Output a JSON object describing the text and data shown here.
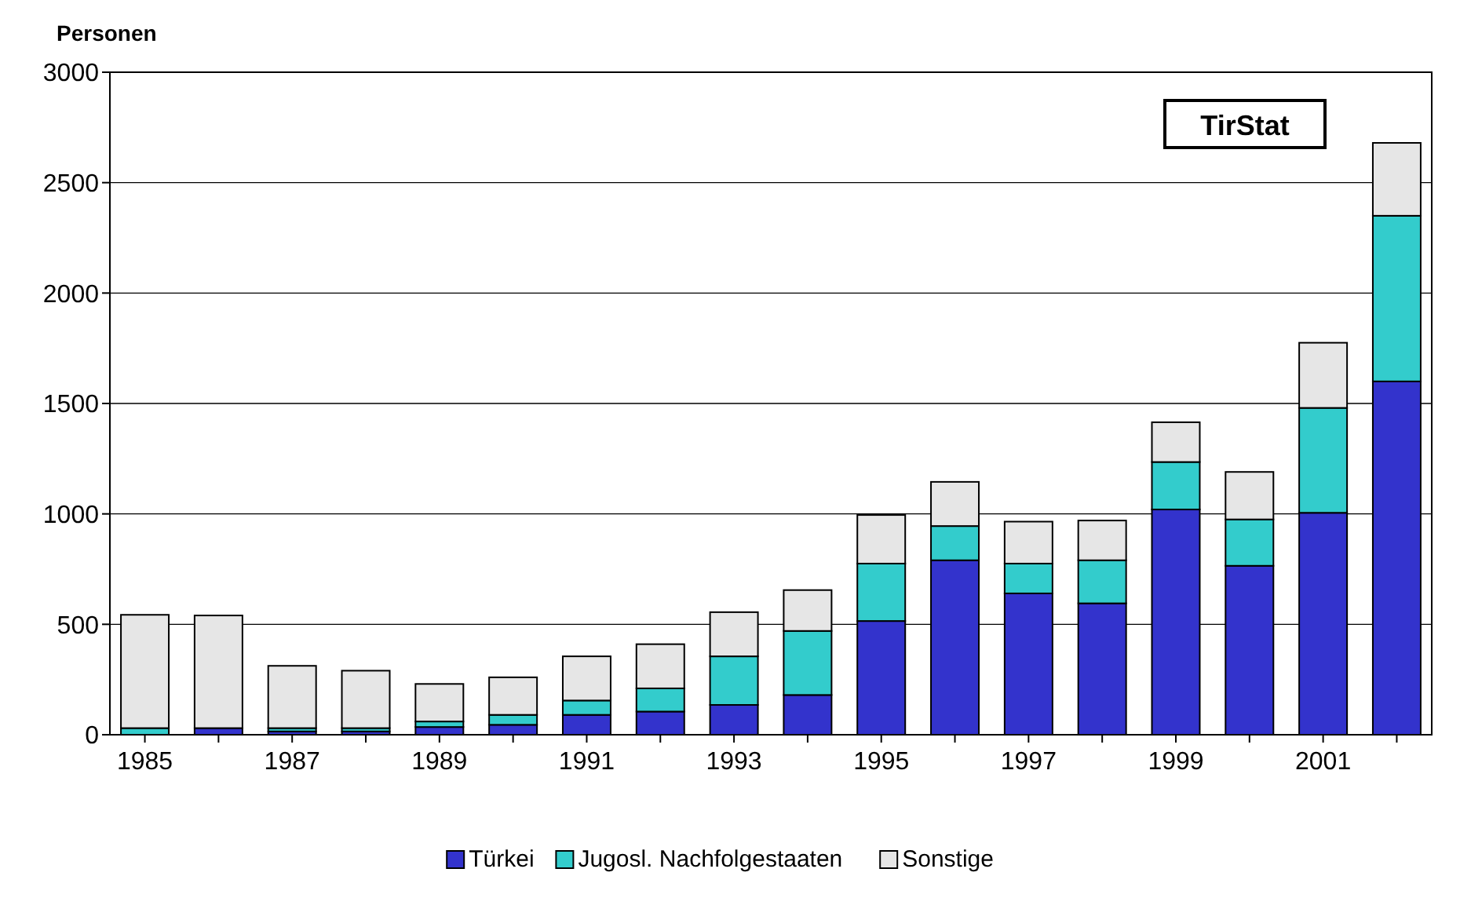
{
  "chart_data": {
    "type": "bar",
    "stacked": true,
    "ylabel": "Personen",
    "categories": [
      "1985",
      null,
      "1987",
      null,
      "1989",
      null,
      "1991",
      null,
      "1993",
      null,
      "1995",
      null,
      "1997",
      null,
      "1999",
      null,
      "2001",
      null
    ],
    "series": [
      {
        "name": "Türkei",
        "color": "#3333cc",
        "values": [
          null,
          30,
          15,
          15,
          35,
          45,
          90,
          105,
          135,
          180,
          515,
          790,
          640,
          595,
          1020,
          765,
          1005,
          1600
        ]
      },
      {
        "name": "Jugosl. Nachfolgestaaten",
        "color": "#33cccc",
        "values": [
          30,
          null,
          15,
          15,
          25,
          45,
          65,
          105,
          220,
          290,
          260,
          155,
          135,
          195,
          215,
          210,
          475,
          750
        ]
      },
      {
        "name": "Sonstige",
        "color": "#e6e6e6",
        "values": [
          513,
          510,
          282,
          260,
          170,
          170,
          200,
          200,
          200,
          185,
          220,
          200,
          190,
          180,
          180,
          215,
          295,
          330
        ]
      }
    ],
    "ylim": [
      0,
      3000
    ],
    "yticks": [
      0,
      500,
      1000,
      1500,
      2000,
      2500,
      3000
    ],
    "grid": "y",
    "legend": "bottom",
    "annotations": [
      "TirStat"
    ]
  }
}
